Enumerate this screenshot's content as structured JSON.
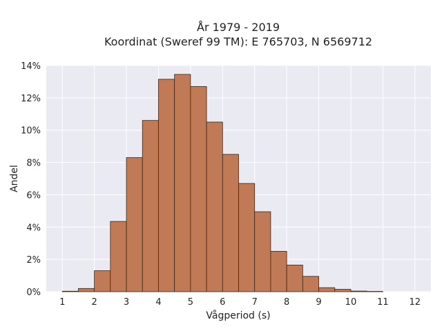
{
  "chart_data": {
    "type": "bar",
    "title_line1": "År 1979 - 2019",
    "title_line2": "Koordinat (Sweref 99 TM): E 765703, N 6569712",
    "xlabel": "Vågperiod (s)",
    "ylabel": "Andel",
    "xlim": [
      0.5,
      12.5
    ],
    "ylim": [
      0,
      14
    ],
    "xticks": [
      1,
      2,
      3,
      4,
      5,
      6,
      7,
      8,
      9,
      10,
      11,
      12
    ],
    "yticks": [
      0,
      2,
      4,
      6,
      8,
      10,
      12,
      14
    ],
    "ytick_suffix": "%",
    "grid": true,
    "bin_width": 0.5,
    "bins": [
      {
        "start": 1.0,
        "value": 0.03
      },
      {
        "start": 1.5,
        "value": 0.2
      },
      {
        "start": 2.0,
        "value": 1.3
      },
      {
        "start": 2.5,
        "value": 4.35
      },
      {
        "start": 3.0,
        "value": 8.3
      },
      {
        "start": 3.5,
        "value": 10.6
      },
      {
        "start": 4.0,
        "value": 13.15
      },
      {
        "start": 4.5,
        "value": 13.45
      },
      {
        "start": 5.0,
        "value": 12.7
      },
      {
        "start": 5.5,
        "value": 10.5
      },
      {
        "start": 6.0,
        "value": 8.5
      },
      {
        "start": 6.5,
        "value": 6.7
      },
      {
        "start": 7.0,
        "value": 4.95
      },
      {
        "start": 7.5,
        "value": 2.5
      },
      {
        "start": 8.0,
        "value": 1.65
      },
      {
        "start": 8.5,
        "value": 0.95
      },
      {
        "start": 9.0,
        "value": 0.25
      },
      {
        "start": 9.5,
        "value": 0.15
      },
      {
        "start": 10.0,
        "value": 0.04
      },
      {
        "start": 10.5,
        "value": 0.02
      }
    ],
    "colors": {
      "bar": "#c07a55",
      "edge": "#3a2418",
      "background": "#eaeaf2",
      "grid": "#ffffff"
    }
  }
}
